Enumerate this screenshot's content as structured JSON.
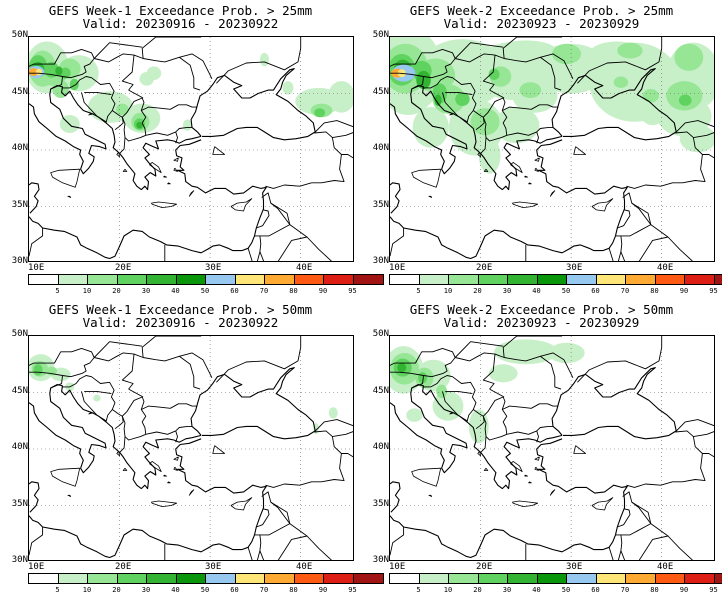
{
  "panels": [
    {
      "id": "p1",
      "title_line1": "GEFS Week-1 Exceedance Prob. > 25mm",
      "title_line2": "Valid: 20230916 - 20230922",
      "intensity": "w1_25"
    },
    {
      "id": "p2",
      "title_line1": "GEFS Week-2 Exceedance Prob. > 25mm",
      "title_line2": "Valid: 20230923 - 20230929",
      "intensity": "w2_25"
    },
    {
      "id": "p3",
      "title_line1": "GEFS Week-1 Exceedance Prob. > 50mm",
      "title_line2": "Valid: 20230916 - 20230922",
      "intensity": "w1_50"
    },
    {
      "id": "p4",
      "title_line1": "GEFS Week-2 Exceedance Prob. > 50mm",
      "title_line2": "Valid: 20230923 - 20230929",
      "intensity": "w2_50"
    }
  ],
  "lat_labels": [
    "50N",
    "45N",
    "40N",
    "35N",
    "30N"
  ],
  "lon_labels": [
    "10E",
    "20E",
    "30E",
    "40E"
  ],
  "legend": {
    "labels": [
      "5",
      "10",
      "20",
      "30",
      "40",
      "50",
      "60",
      "70",
      "80",
      "90",
      "95"
    ],
    "colors": [
      "#ffffff",
      "#c8f0c8",
      "#96e696",
      "#5fd25f",
      "#32b432",
      "#0a960a",
      "#96c8f0",
      "#ffe678",
      "#ffaa32",
      "#ff5a14",
      "#dc1e14",
      "#a01414"
    ]
  }
}
